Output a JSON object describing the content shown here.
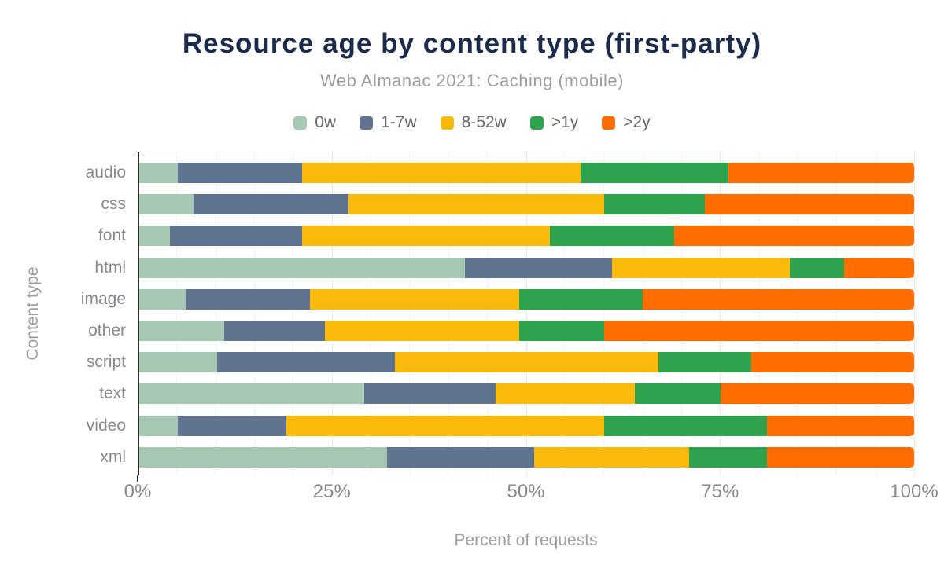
{
  "title": "Resource age by content type (first-party)",
  "subtitle": "Web Almanac 2021: Caching (mobile)",
  "chart_data": {
    "type": "bar",
    "orientation": "horizontal",
    "stacked": true,
    "title": "Resource age by content type (first-party)",
    "subtitle": "Web Almanac 2021: Caching (mobile)",
    "xlabel": "Percent of requests",
    "ylabel": "Content type",
    "xlim": [
      0,
      100
    ],
    "xticks": [
      {
        "value": 0,
        "label": "0%"
      },
      {
        "value": 25,
        "label": "25%"
      },
      {
        "value": 50,
        "label": "50%"
      },
      {
        "value": 75,
        "label": "75%"
      },
      {
        "value": 100,
        "label": "100%"
      }
    ],
    "grid": "vertical minor every 5%, major every 25%",
    "legend_position": "top",
    "categories": [
      "audio",
      "css",
      "font",
      "html",
      "image",
      "other",
      "script",
      "text",
      "video",
      "xml"
    ],
    "series": [
      {
        "name": "0w",
        "color": "#a6c8b3",
        "values": [
          5,
          7,
          4,
          42,
          6,
          11,
          10,
          29,
          5,
          32
        ]
      },
      {
        "name": "1-7w",
        "color": "#60738e",
        "values": [
          16,
          20,
          17,
          19,
          16,
          13,
          23,
          17,
          14,
          19
        ]
      },
      {
        "name": "8-52w",
        "color": "#f9ba0b",
        "values": [
          36,
          33,
          32,
          23,
          27,
          25,
          34,
          18,
          41,
          20
        ]
      },
      {
        "name": ">1y",
        "color": "#2fa24d",
        "values": [
          19,
          13,
          16,
          7,
          16,
          11,
          12,
          11,
          21,
          10
        ]
      },
      {
        "name": ">2y",
        "color": "#ff6d00",
        "values": [
          24,
          27,
          31,
          9,
          35,
          40,
          21,
          25,
          19,
          19
        ]
      }
    ],
    "colors": {
      "title": "#1b2b4e",
      "subtitle": "#9e9e9e",
      "axis_text": "#85898d",
      "axis_line": "#2b2b2b"
    }
  }
}
